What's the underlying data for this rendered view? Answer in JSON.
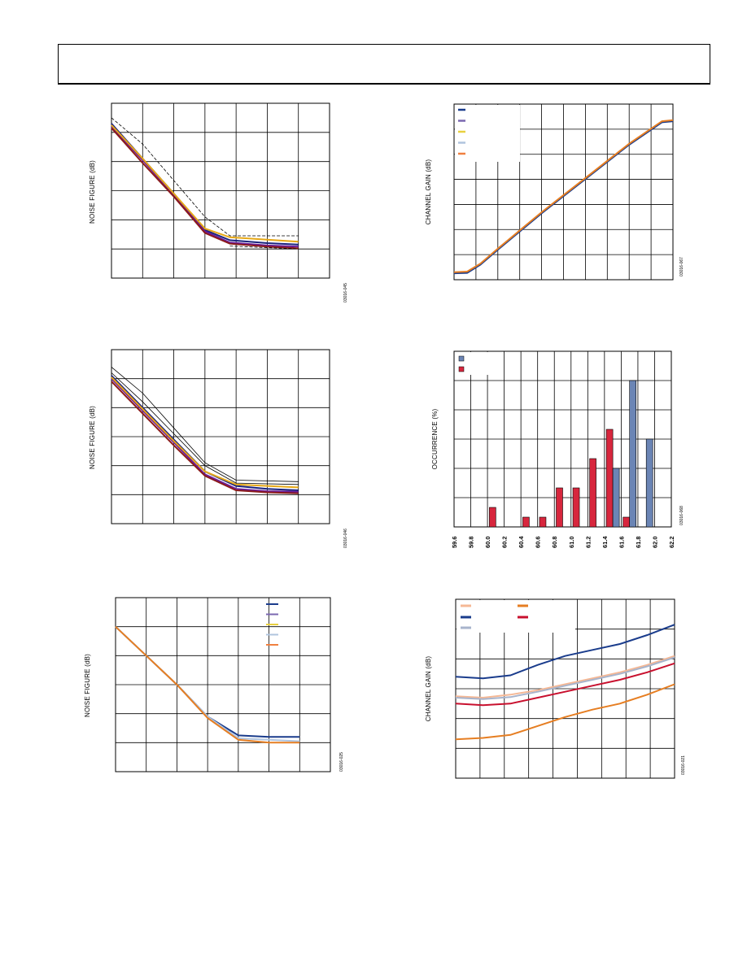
{
  "page": {
    "header_text": ""
  },
  "charts": {
    "nf1": {
      "ylabel": "NOISE FIGURE (dB)",
      "code": "03016-045"
    },
    "gain1": {
      "ylabel": "CHANNEL GAIN (dB)",
      "code": "03016-067"
    },
    "nf2": {
      "ylabel": "NOISE FIGURE (dB)",
      "code": "03016-046"
    },
    "hist": {
      "ylabel": "OCCURRENCE (%)",
      "code": "03016-068"
    },
    "nf3": {
      "ylabel": "NOISE FIGURE (dB)",
      "code": "03016-025"
    },
    "gain2": {
      "ylabel": "CHANNEL GAIN (dB)",
      "code": "03016-021"
    }
  },
  "chart_data": [
    {
      "id": "nf1",
      "type": "line",
      "ylabel": "NOISE FIGURE (dB)",
      "grid": true,
      "x_divisions": 7,
      "y_divisions": 6,
      "series": [
        {
          "color": "#1a237e",
          "points": [
            [
              0,
              5.3
            ],
            [
              1,
              4.1
            ],
            [
              2,
              2.9
            ],
            [
              3,
              1.65
            ],
            [
              3.8,
              1.3
            ],
            [
              5,
              1.2
            ],
            [
              6,
              1.15
            ]
          ]
        },
        {
          "color": "#6a1b9a",
          "points": [
            [
              0,
              5.2
            ],
            [
              1,
              4.05
            ],
            [
              2,
              2.85
            ],
            [
              3,
              1.6
            ],
            [
              3.8,
              1.22
            ],
            [
              5,
              1.12
            ],
            [
              6,
              1.08
            ]
          ]
        },
        {
          "color": "#8b1a1a",
          "points": [
            [
              0,
              5.15
            ],
            [
              1,
              3.95
            ],
            [
              2,
              2.8
            ],
            [
              3,
              1.55
            ],
            [
              3.8,
              1.18
            ],
            [
              5,
              1.08
            ],
            [
              6,
              1.02
            ]
          ]
        },
        {
          "color": "#e6a817",
          "points": [
            [
              0,
              5.25
            ],
            [
              1,
              4.1
            ],
            [
              2,
              2.9
            ],
            [
              3,
              1.7
            ],
            [
              3.8,
              1.4
            ],
            [
              5,
              1.32
            ],
            [
              6,
              1.25
            ]
          ]
        },
        {
          "color": "#000000",
          "dash": true,
          "points": [
            [
              0,
              5.5
            ],
            [
              1,
              4.6
            ],
            [
              2,
              3.35
            ],
            [
              3,
              2.1
            ],
            [
              3.8,
              1.45
            ],
            [
              6,
              1.45
            ]
          ]
        },
        {
          "color": "#000000",
          "dash": true,
          "points": [
            [
              3.8,
              1.1
            ],
            [
              6,
              1.0
            ]
          ]
        }
      ],
      "ylim": [
        0,
        6
      ],
      "xlim": [
        0,
        7
      ]
    },
    {
      "id": "gain1",
      "type": "line",
      "ylabel": "CHANNEL GAIN (dB)",
      "grid": true,
      "x_divisions": 10,
      "y_divisions": 7,
      "legend": {
        "placement": "top-left",
        "entries": 5,
        "colors": [
          "#1a3c8c",
          "#7b68b0",
          "#e8d040",
          "#b0c4de",
          "#f08040"
        ]
      },
      "series": [
        {
          "color": "#1a3c8c",
          "points": [
            [
              0,
              0.1
            ],
            [
              0.6,
              0.12
            ],
            [
              1.2,
              0.5
            ],
            [
              2,
              1.2
            ],
            [
              4,
              2.9
            ],
            [
              6,
              4.5
            ],
            [
              8,
              6.1
            ],
            [
              9.5,
              7.15
            ],
            [
              10,
              7.2
            ]
          ]
        },
        {
          "color": "#e67e22",
          "points": [
            [
              0,
              0.15
            ],
            [
              0.6,
              0.18
            ],
            [
              1.2,
              0.55
            ],
            [
              2,
              1.25
            ],
            [
              4,
              2.95
            ],
            [
              6,
              4.55
            ],
            [
              8,
              6.15
            ],
            [
              9.5,
              7.2
            ],
            [
              10,
              7.25
            ]
          ]
        }
      ],
      "ylim": [
        -0.2,
        8
      ],
      "xlim": [
        0,
        10
      ]
    },
    {
      "id": "nf2",
      "type": "line",
      "ylabel": "NOISE FIGURE (dB)",
      "grid": true,
      "x_divisions": 7,
      "y_divisions": 6,
      "series": [
        {
          "color": "#1a237e",
          "points": [
            [
              0,
              5.1
            ],
            [
              1,
              4.0
            ],
            [
              2,
              2.9
            ],
            [
              3,
              1.8
            ],
            [
              4,
              1.3
            ],
            [
              5,
              1.2
            ],
            [
              6,
              1.15
            ]
          ]
        },
        {
          "color": "#6a1b9a",
          "points": [
            [
              0,
              5.0
            ],
            [
              1,
              3.9
            ],
            [
              2,
              2.8
            ],
            [
              3,
              1.7
            ],
            [
              4,
              1.2
            ],
            [
              5,
              1.12
            ],
            [
              6,
              1.1
            ]
          ]
        },
        {
          "color": "#8b1a1a",
          "points": [
            [
              0,
              4.9
            ],
            [
              1,
              3.8
            ],
            [
              2,
              2.7
            ],
            [
              3,
              1.65
            ],
            [
              4,
              1.15
            ],
            [
              5,
              1.08
            ],
            [
              6,
              1.05
            ]
          ]
        },
        {
          "color": "#e6a817",
          "points": [
            [
              0,
              5.05
            ],
            [
              1,
              3.95
            ],
            [
              2,
              2.85
            ],
            [
              3,
              1.8
            ],
            [
              4,
              1.35
            ],
            [
              5,
              1.3
            ],
            [
              6,
              1.25
            ]
          ]
        },
        {
          "color": "#000000",
          "points": [
            [
              0,
              5.4
            ],
            [
              1,
              4.5
            ],
            [
              2,
              3.3
            ],
            [
              3,
              2.1
            ],
            [
              4,
              1.5
            ],
            [
              6,
              1.45
            ]
          ]
        },
        {
          "color": "#000000",
          "points": [
            [
              0,
              5.2
            ],
            [
              1,
              4.2
            ],
            [
              2,
              3.1
            ],
            [
              3,
              2.0
            ],
            [
              4,
              1.4
            ],
            [
              6,
              1.35
            ]
          ]
        }
      ],
      "ylim": [
        0,
        6
      ],
      "xlim": [
        0,
        7
      ]
    },
    {
      "id": "hist",
      "type": "bar",
      "ylabel": "OCCURRENCE (%)",
      "grid": true,
      "categories": [
        "59.6",
        "59.8",
        "60.0",
        "60.2",
        "60.4",
        "60.6",
        "60.8",
        "61.0",
        "61.2",
        "61.4",
        "61.6",
        "61.8",
        "62.0",
        "62.2"
      ],
      "legend": {
        "placement": "top-left",
        "colors": [
          "#6b85b5",
          "#d7263d"
        ]
      },
      "series": [
        {
          "color": "#d7263d",
          "values": [
            0,
            0,
            2,
            0,
            1,
            1,
            4,
            4,
            7,
            10,
            1,
            0,
            0,
            0
          ]
        },
        {
          "color": "#6b85b5",
          "values": [
            0,
            0,
            0,
            0,
            0,
            0,
            0,
            0,
            0,
            6,
            15,
            9,
            0,
            0
          ]
        }
      ],
      "ylim": [
        0,
        18
      ]
    },
    {
      "id": "nf3",
      "type": "line",
      "ylabel": "NOISE FIGURE (dB)",
      "grid": true,
      "x_divisions": 7,
      "y_divisions": 6,
      "legend": {
        "placement": "top-right",
        "entries": 5,
        "colors": [
          "#1a3c8c",
          "#7b68b0",
          "#e8d040",
          "#b0c4de",
          "#f08040"
        ]
      },
      "series": [
        {
          "color": "#1a3c8c",
          "points": [
            [
              0,
              5.0
            ],
            [
              1,
              4.0
            ],
            [
              2,
              3.0
            ],
            [
              3,
              1.9
            ],
            [
              4,
              1.25
            ],
            [
              5,
              1.2
            ],
            [
              6,
              1.2
            ]
          ]
        },
        {
          "color": "#b0c4de",
          "points": [
            [
              0,
              5.0
            ],
            [
              1,
              4.0
            ],
            [
              2,
              3.0
            ],
            [
              3,
              1.9
            ],
            [
              4,
              1.15
            ],
            [
              5,
              1.1
            ],
            [
              6,
              1.05
            ]
          ]
        },
        {
          "color": "#e67e22",
          "points": [
            [
              0,
              5.0
            ],
            [
              1,
              4.0
            ],
            [
              2,
              3.0
            ],
            [
              3,
              1.85
            ],
            [
              4,
              1.1
            ],
            [
              5,
              1.0
            ],
            [
              6,
              1.0
            ]
          ]
        }
      ],
      "ylim": [
        0,
        6
      ],
      "xlim": [
        0,
        7
      ]
    },
    {
      "id": "gain2",
      "type": "line",
      "ylabel": "CHANNEL GAIN (dB)",
      "grid": true,
      "x_divisions": 9,
      "y_divisions": 6,
      "legend": {
        "placement": "top-left",
        "entries": 5,
        "colors": [
          "#f5b895",
          "#1a3c8c",
          "#a8b4cc",
          "#e67e22",
          "#c8102e"
        ]
      },
      "series": [
        {
          "color": "#1a3c8c",
          "points": [
            [
              0,
              3.4
            ],
            [
              1,
              3.35
            ],
            [
              2,
              3.45
            ],
            [
              3,
              3.8
            ],
            [
              4,
              4.1
            ],
            [
              5,
              4.3
            ],
            [
              6,
              4.5
            ],
            [
              7,
              4.8
            ],
            [
              8,
              5.15
            ]
          ]
        },
        {
          "color": "#f5b895",
          "points": [
            [
              0,
              2.75
            ],
            [
              1,
              2.7
            ],
            [
              2,
              2.8
            ],
            [
              3,
              2.95
            ],
            [
              4,
              3.15
            ],
            [
              5,
              3.35
            ],
            [
              6,
              3.55
            ],
            [
              7,
              3.8
            ],
            [
              8,
              4.1
            ]
          ]
        },
        {
          "color": "#a8b4cc",
          "points": [
            [
              0,
              2.7
            ],
            [
              1,
              2.65
            ],
            [
              2,
              2.72
            ],
            [
              3,
              2.9
            ],
            [
              4,
              3.1
            ],
            [
              5,
              3.3
            ],
            [
              6,
              3.5
            ],
            [
              7,
              3.75
            ],
            [
              8,
              4.05
            ]
          ]
        },
        {
          "color": "#c8102e",
          "points": [
            [
              0,
              2.5
            ],
            [
              1,
              2.45
            ],
            [
              2,
              2.5
            ],
            [
              3,
              2.7
            ],
            [
              4,
              2.9
            ],
            [
              5,
              3.1
            ],
            [
              6,
              3.3
            ],
            [
              7,
              3.55
            ],
            [
              8,
              3.85
            ]
          ]
        },
        {
          "color": "#e67e22",
          "points": [
            [
              0,
              1.3
            ],
            [
              1,
              1.35
            ],
            [
              2,
              1.45
            ],
            [
              3,
              1.75
            ],
            [
              4,
              2.05
            ],
            [
              5,
              2.3
            ],
            [
              6,
              2.5
            ],
            [
              7,
              2.8
            ],
            [
              8,
              3.15
            ]
          ]
        }
      ],
      "ylim": [
        0,
        6
      ],
      "xlim": [
        0,
        8
      ]
    }
  ]
}
